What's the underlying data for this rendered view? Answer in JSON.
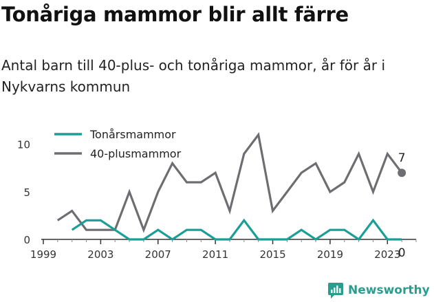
{
  "title": "Tonåriga mammor blir allt färre",
  "subtitle": "Antal barn till 40-plus- och tonåriga mammor, år för år i Nykvarns kommun",
  "brand": "Newsworthy",
  "colors": {
    "teen": "#1a9e96",
    "forty": "#6e6e72",
    "axis": "#333333",
    "logo": "#2a9d8f"
  },
  "chart_data": {
    "type": "line",
    "x_ticks": [
      "1999",
      "2003",
      "2007",
      "2011",
      "2015",
      "2019",
      "2023"
    ],
    "y_ticks": [
      "0",
      "5",
      "10"
    ],
    "xlim": [
      1999,
      2025
    ],
    "ylim": [
      0,
      11.5
    ],
    "grid": false,
    "legend_position": "top-left",
    "series": [
      {
        "name": "Tonårsmammor",
        "color": "#1a9e96",
        "end_label": "0",
        "x": [
          2001,
          2002,
          2003,
          2004,
          2005,
          2006,
          2007,
          2008,
          2009,
          2010,
          2011,
          2012,
          2013,
          2014,
          2015,
          2016,
          2017,
          2018,
          2019,
          2020,
          2021,
          2022,
          2023,
          2024
        ],
        "values": [
          1,
          2,
          2,
          1,
          0,
          0,
          1,
          0,
          1,
          1,
          0,
          0,
          2,
          0,
          0,
          0,
          1,
          0,
          1,
          1,
          0,
          2,
          0,
          0
        ]
      },
      {
        "name": "40-plusmammor",
        "color": "#6e6e72",
        "end_label": "7",
        "x": [
          2000,
          2001,
          2002,
          2003,
          2004,
          2005,
          2006,
          2007,
          2008,
          2009,
          2010,
          2011,
          2012,
          2013,
          2014,
          2015,
          2016,
          2017,
          2018,
          2019,
          2020,
          2021,
          2022,
          2023,
          2024
        ],
        "values": [
          2,
          3,
          1,
          1,
          1,
          5,
          1,
          5,
          8,
          6,
          6,
          7,
          3,
          9,
          11,
          3,
          5,
          7,
          8,
          5,
          6,
          9,
          5,
          9,
          7
        ]
      }
    ]
  }
}
